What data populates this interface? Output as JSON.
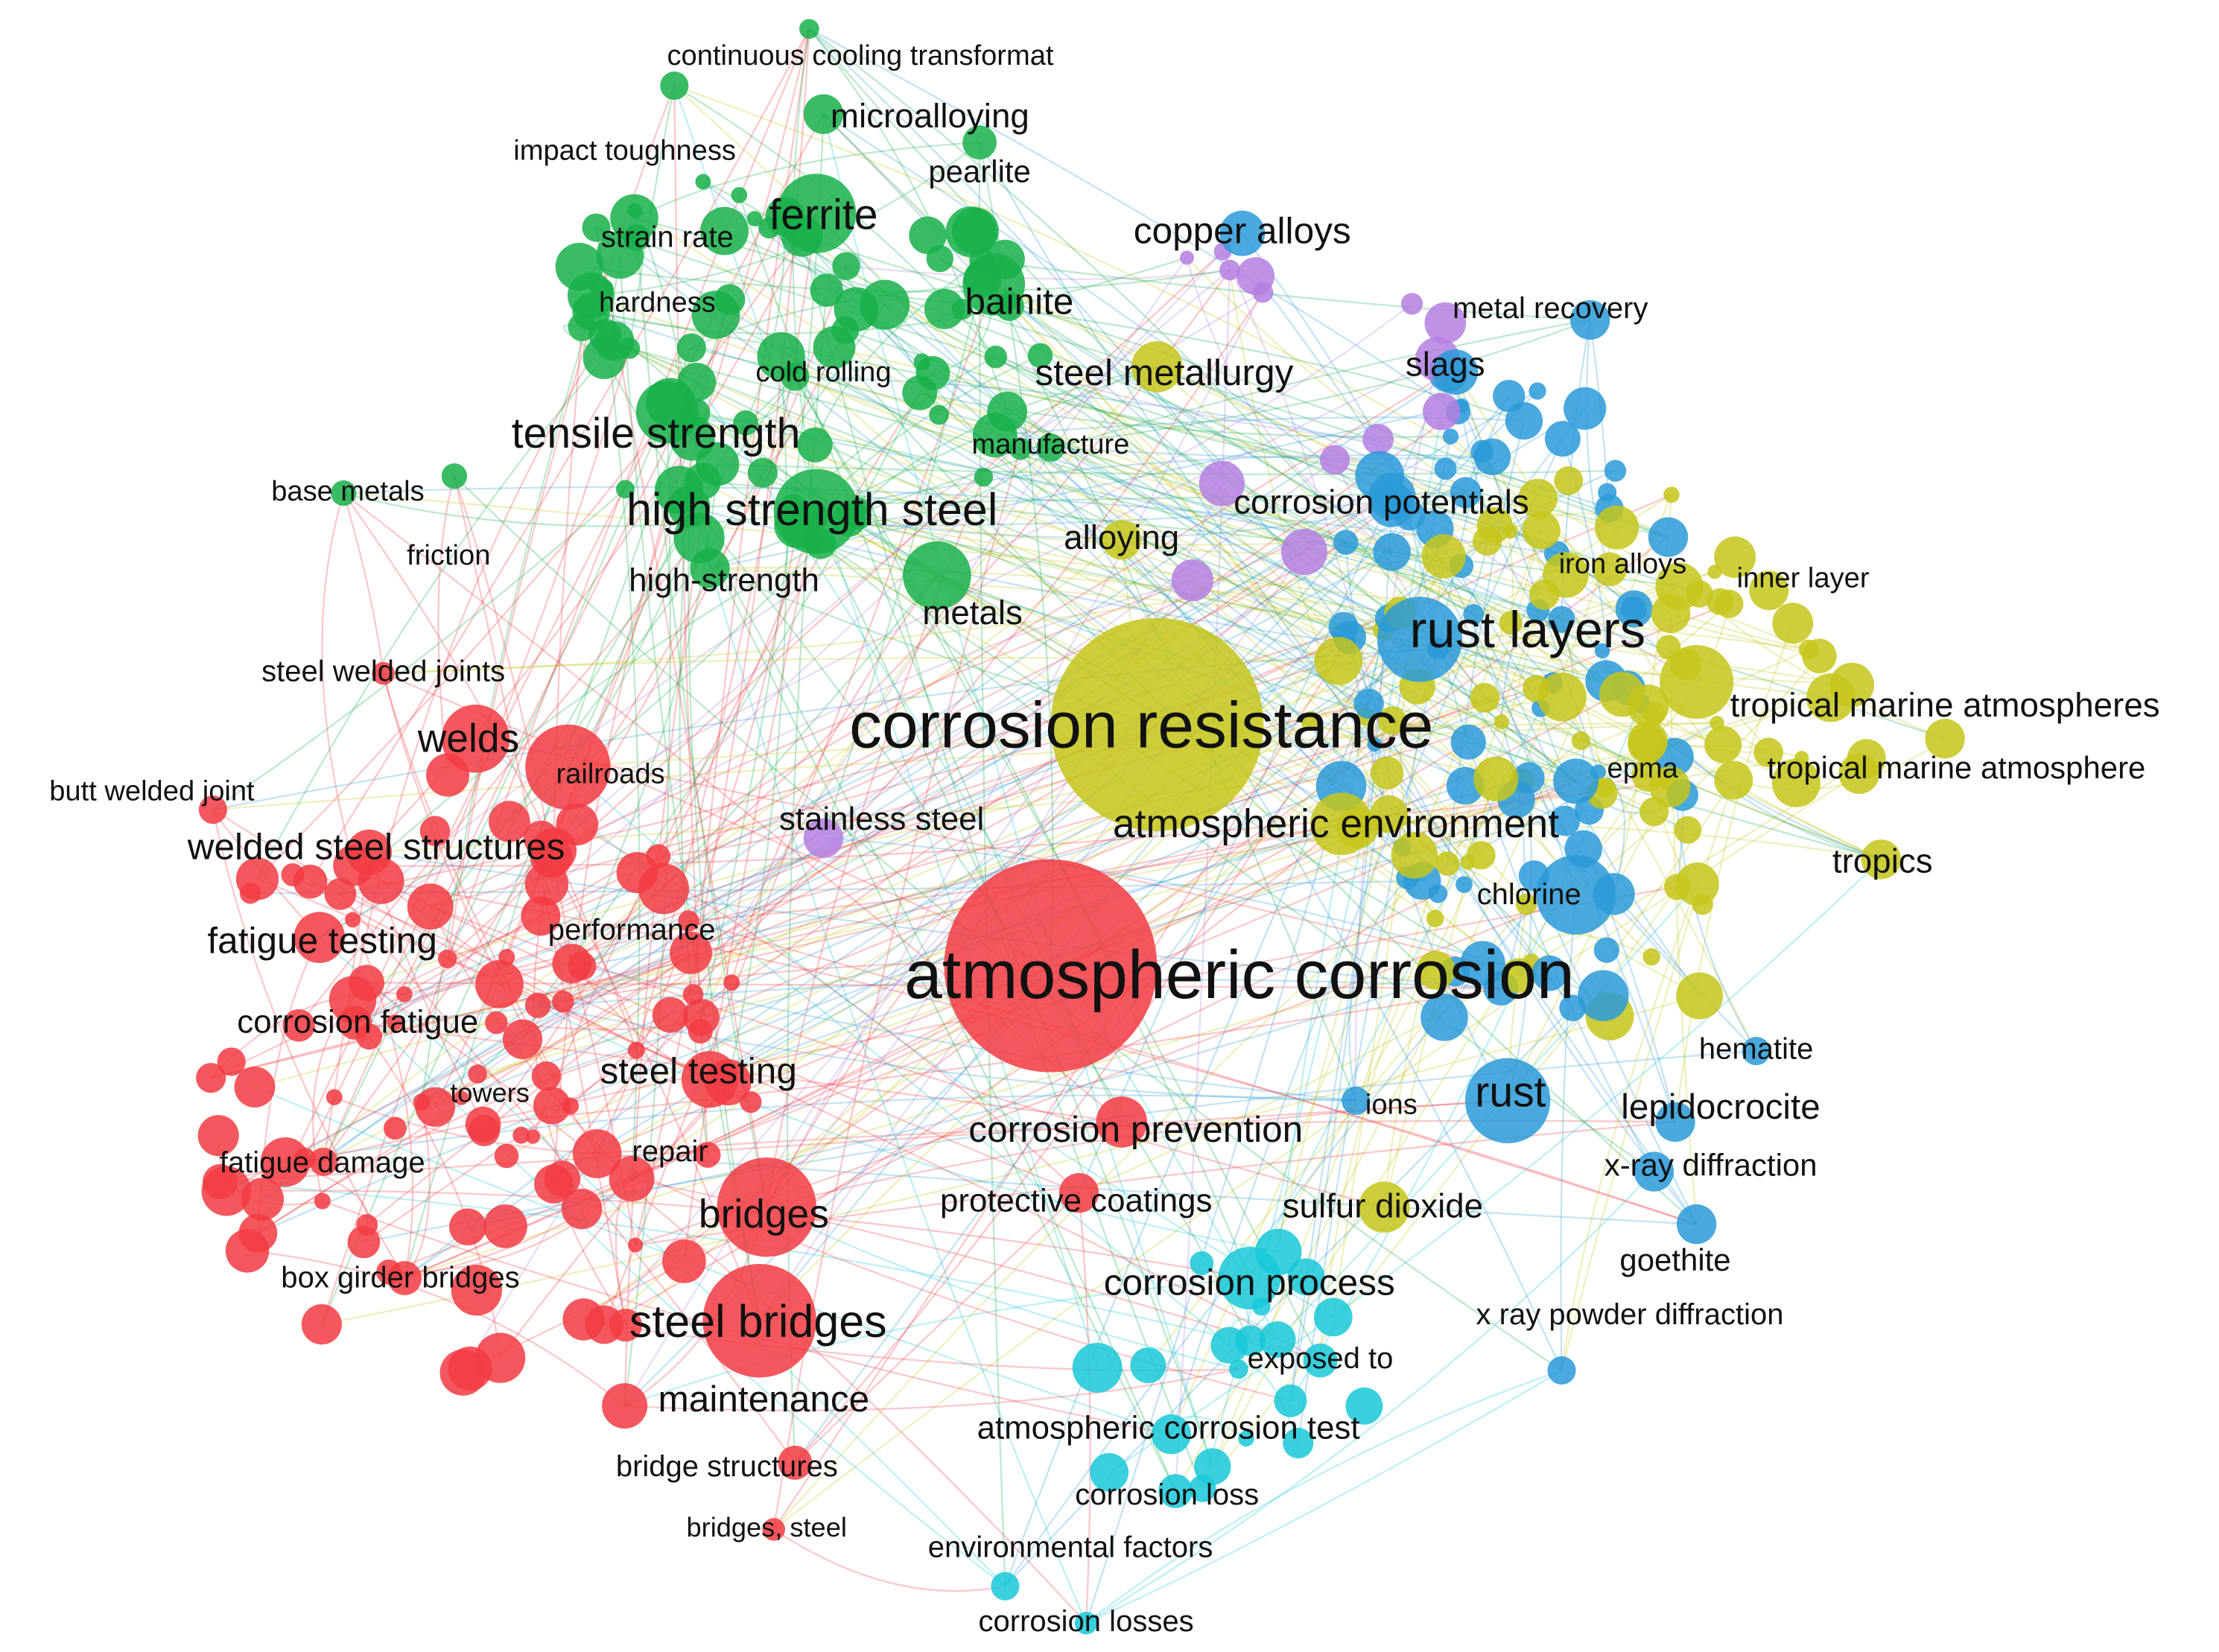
{
  "nodes": [
    {
      "label": "continuous cooling transformat"
    },
    {
      "label": "microalloying"
    },
    {
      "label": "impact toughness"
    },
    {
      "label": "pearlite"
    },
    {
      "label": "ferrite"
    },
    {
      "label": "strain rate"
    },
    {
      "label": "hardness"
    },
    {
      "label": "bainite"
    },
    {
      "label": "cold rolling"
    },
    {
      "label": "steel metallurgy"
    },
    {
      "label": "tensile strength"
    },
    {
      "label": "manufacture"
    },
    {
      "label": "base metals"
    },
    {
      "label": "high strength steel"
    },
    {
      "label": "alloying"
    },
    {
      "label": "friction"
    },
    {
      "label": "high-strength"
    },
    {
      "label": "metals"
    },
    {
      "label": "steel welded joints"
    },
    {
      "label": "welds"
    },
    {
      "label": "railroads"
    },
    {
      "label": "butt welded joint"
    },
    {
      "label": "welded steel structures"
    },
    {
      "label": "fatigue testing"
    },
    {
      "label": "performance"
    },
    {
      "label": "corrosion fatigue"
    },
    {
      "label": "steel testing"
    },
    {
      "label": "towers"
    },
    {
      "label": "repair"
    },
    {
      "label": "fatigue damage"
    },
    {
      "label": "bridges"
    },
    {
      "label": "box girder bridges"
    },
    {
      "label": "steel bridges"
    },
    {
      "label": "maintenance"
    },
    {
      "label": "bridge structures"
    },
    {
      "label": "bridges, steel"
    },
    {
      "label": "atmospheric corrosion"
    },
    {
      "label": "corrosion prevention"
    },
    {
      "label": "protective coatings"
    },
    {
      "label": "corrosion process"
    },
    {
      "label": "exposed to"
    },
    {
      "label": "atmospheric corrosion test"
    },
    {
      "label": "corrosion loss"
    },
    {
      "label": "environmental factors"
    },
    {
      "label": "corrosion losses"
    },
    {
      "label": "copper alloys"
    },
    {
      "label": "metal recovery"
    },
    {
      "label": "slags"
    },
    {
      "label": "corrosion potentials"
    },
    {
      "label": "iron alloys"
    },
    {
      "label": "inner layer"
    },
    {
      "label": "rust layers"
    },
    {
      "label": "corrosion resistance"
    },
    {
      "label": "tropical marine atmospheres"
    },
    {
      "label": "epma"
    },
    {
      "label": "tropical marine atmosphere"
    },
    {
      "label": "stainless steel"
    },
    {
      "label": "atmospheric environment"
    },
    {
      "label": "tropics"
    },
    {
      "label": "chlorine"
    },
    {
      "label": "hematite"
    },
    {
      "label": "rust"
    },
    {
      "label": "ions"
    },
    {
      "label": "lepidocrocite"
    },
    {
      "label": "x-ray diffraction"
    },
    {
      "label": "sulfur dioxide"
    },
    {
      "label": "goethite"
    },
    {
      "label": "x ray powder diffraction"
    }
  ]
}
